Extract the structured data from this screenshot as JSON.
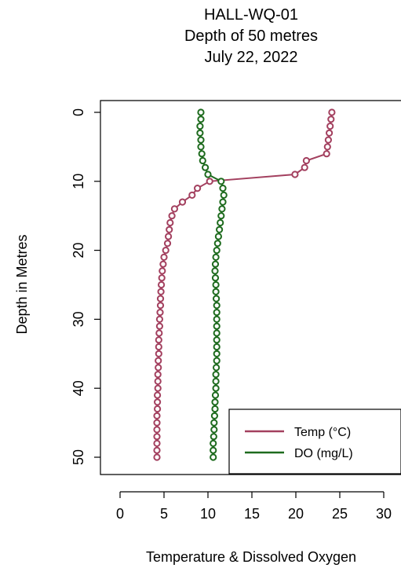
{
  "chart_data": {
    "type": "line",
    "title": [
      "HALL-WQ-01",
      "Depth of 50 metres",
      "July 22, 2022"
    ],
    "xlabel": "Temperature & Dissolved Oxygen",
    "ylabel": "Depth in Metres",
    "xlim": [
      0,
      30
    ],
    "ylim": [
      0,
      50
    ],
    "y_reversed": true,
    "x_ticks": [
      0,
      5,
      10,
      15,
      20,
      25,
      30
    ],
    "y_ticks": [
      0,
      10,
      20,
      30,
      40,
      50
    ],
    "grid": false,
    "legend_position": "bottom-right",
    "markers": "open-circle",
    "depth": [
      0,
      1,
      2,
      3,
      4,
      5,
      6,
      7,
      8,
      9,
      10,
      11,
      12,
      13,
      14,
      15,
      16,
      17,
      18,
      19,
      20,
      21,
      22,
      23,
      24,
      25,
      26,
      27,
      28,
      29,
      30,
      31,
      32,
      33,
      34,
      35,
      36,
      37,
      38,
      39,
      40,
      41,
      42,
      43,
      44,
      45,
      46,
      47,
      48,
      49,
      50
    ],
    "series": [
      {
        "name": "Temp (°C)",
        "color": "#a3405f",
        "values": [
          24.1,
          24.0,
          23.9,
          23.8,
          23.7,
          23.6,
          23.5,
          21.2,
          21.0,
          19.9,
          10.2,
          8.8,
          8.2,
          7.1,
          6.2,
          5.9,
          5.7,
          5.6,
          5.5,
          5.4,
          5.2,
          5.0,
          4.9,
          4.8,
          4.75,
          4.7,
          4.65,
          4.6,
          4.6,
          4.55,
          4.5,
          4.5,
          4.45,
          4.4,
          4.4,
          4.4,
          4.35,
          4.35,
          4.3,
          4.3,
          4.3,
          4.25,
          4.25,
          4.25,
          4.2,
          4.2,
          4.2,
          4.2,
          4.2,
          4.2,
          4.2
        ]
      },
      {
        "name": "DO (mg/L)",
        "color": "#1e6b1e",
        "values": [
          9.2,
          9.2,
          9.1,
          9.1,
          9.2,
          9.2,
          9.3,
          9.4,
          9.7,
          10.0,
          11.5,
          11.7,
          11.8,
          11.7,
          11.6,
          11.5,
          11.4,
          11.3,
          11.2,
          11.1,
          11.0,
          10.9,
          10.85,
          10.8,
          10.85,
          10.9,
          10.9,
          10.95,
          11.0,
          11.0,
          11.0,
          11.0,
          11.0,
          11.0,
          11.0,
          11.0,
          11.0,
          10.95,
          10.9,
          10.9,
          10.9,
          10.85,
          10.8,
          10.8,
          10.75,
          10.7,
          10.7,
          10.65,
          10.6,
          10.6,
          10.6
        ]
      }
    ]
  }
}
